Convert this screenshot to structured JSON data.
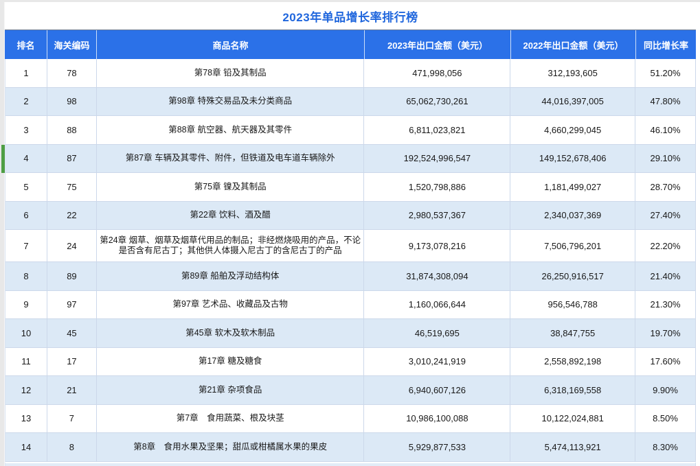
{
  "title": "2023年单品增长率排行榜",
  "table": {
    "columns": [
      {
        "key": "rank",
        "label": "排名"
      },
      {
        "key": "code",
        "label": "海关编码"
      },
      {
        "key": "name",
        "label": "商品名称"
      },
      {
        "key": "amount_2023",
        "label": "2023年出口金额（美元）"
      },
      {
        "key": "amount_2022",
        "label": "2022年出口金额（美元）"
      },
      {
        "key": "growth",
        "label": "同比增长率"
      }
    ],
    "rows": [
      {
        "rank": "1",
        "code": "78",
        "name": "第78章 铅及其制品",
        "amount_2023": "471,998,056",
        "amount_2022": "312,193,605",
        "growth": "51.20%",
        "marked": false
      },
      {
        "rank": "2",
        "code": "98",
        "name": "第98章 特殊交易品及未分类商品",
        "amount_2023": "65,062,730,261",
        "amount_2022": "44,016,397,005",
        "growth": "47.80%",
        "marked": false
      },
      {
        "rank": "3",
        "code": "88",
        "name": "第88章 航空器、航天器及其零件",
        "amount_2023": "6,811,023,821",
        "amount_2022": "4,660,299,045",
        "growth": "46.10%",
        "marked": false
      },
      {
        "rank": "4",
        "code": "87",
        "name": "第87章 车辆及其零件、附件，但铁道及电车道车辆除外",
        "amount_2023": "192,524,996,547",
        "amount_2022": "149,152,678,406",
        "growth": "29.10%",
        "marked": true
      },
      {
        "rank": "5",
        "code": "75",
        "name": "第75章 镍及其制品",
        "amount_2023": "1,520,798,886",
        "amount_2022": "1,181,499,027",
        "growth": "28.70%",
        "marked": false
      },
      {
        "rank": "6",
        "code": "22",
        "name": "第22章 饮料、酒及醋",
        "amount_2023": "2,980,537,367",
        "amount_2022": "2,340,037,369",
        "growth": "27.40%",
        "marked": false
      },
      {
        "rank": "7",
        "code": "24",
        "name": "第24章 烟草、烟草及烟草代用品的制品；非经燃烧吸用的产品，不论是否含有尼古丁；其他供人体摄入尼古丁的含尼古丁的产品",
        "amount_2023": "9,173,078,216",
        "amount_2022": "7,506,796,201",
        "growth": "22.20%",
        "marked": false
      },
      {
        "rank": "8",
        "code": "89",
        "name": "第89章 船舶及浮动结构体",
        "amount_2023": "31,874,308,094",
        "amount_2022": "26,250,916,517",
        "growth": "21.40%",
        "marked": false
      },
      {
        "rank": "9",
        "code": "97",
        "name": "第97章 艺术品、收藏品及古物",
        "amount_2023": "1,160,066,644",
        "amount_2022": "956,546,788",
        "growth": "21.30%",
        "marked": false
      },
      {
        "rank": "10",
        "code": "45",
        "name": "第45章 软木及软木制品",
        "amount_2023": "46,519,695",
        "amount_2022": "38,847,755",
        "growth": "19.70%",
        "marked": false
      },
      {
        "rank": "11",
        "code": "17",
        "name": "第17章 糖及糖食",
        "amount_2023": "3,010,241,919",
        "amount_2022": "2,558,892,198",
        "growth": "17.60%",
        "marked": false
      },
      {
        "rank": "12",
        "code": "21",
        "name": "第21章 杂项食品",
        "amount_2023": "6,940,607,126",
        "amount_2022": "6,318,169,558",
        "growth": "9.90%",
        "marked": false
      },
      {
        "rank": "13",
        "code": "7",
        "name": "第7章　食用蔬菜、根及块茎",
        "amount_2023": "10,986,100,088",
        "amount_2022": "10,122,024,881",
        "growth": "8.50%",
        "marked": false
      },
      {
        "rank": "14",
        "code": "8",
        "name": "第8章　食用水果及坚果；甜瓜或柑橘属水果的果皮",
        "amount_2023": "5,929,877,533",
        "amount_2022": "5,474,113,921",
        "growth": "8.30%",
        "marked": false
      }
    ]
  },
  "selection": {
    "marked_rank": "4"
  },
  "colors": {
    "header_blue": "#2b71e8",
    "title_blue": "#1f66dd",
    "row_alt_blue": "#dce9f6",
    "grid_line": "#ccd8ea",
    "margin_gray": "#e8e8e8",
    "marker_green": "#4e9e44",
    "header_text": "#ffffff",
    "body_text": "#181818"
  }
}
